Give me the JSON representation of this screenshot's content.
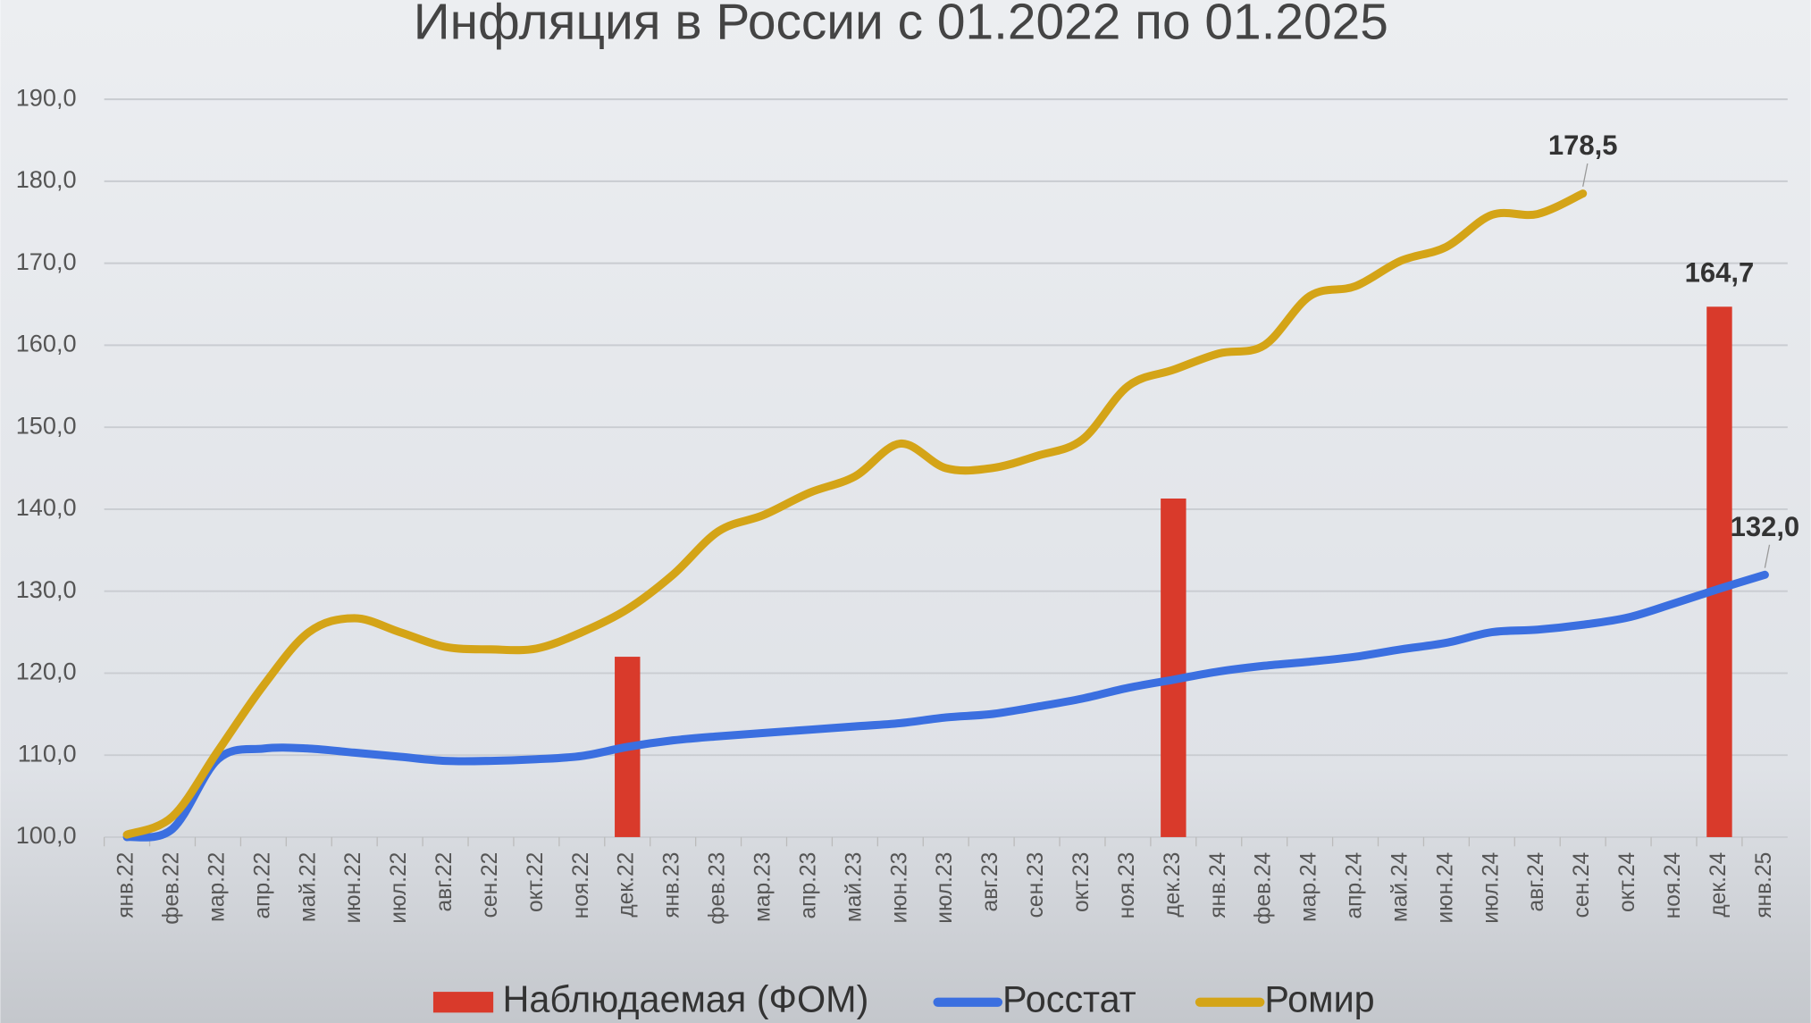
{
  "chart_data": {
    "type": "line",
    "title": "Инфляция в России с 01.2022 по 01.2025",
    "categories": [
      "янв.22",
      "фев.22",
      "мар.22",
      "апр.22",
      "май.22",
      "июн.22",
      "июл.22",
      "авг.22",
      "сен.22",
      "окт.22",
      "ноя.22",
      "дек.22",
      "янв.23",
      "фев.23",
      "мар.23",
      "апр.23",
      "май.23",
      "июн.23",
      "июл.23",
      "авг.23",
      "сен.23",
      "окт.23",
      "ноя.23",
      "дек.23",
      "янв.24",
      "фев.24",
      "мар.24",
      "апр.24",
      "май.24",
      "июн.24",
      "июл.24",
      "авг.24",
      "сен.24",
      "окт.24",
      "ноя.24",
      "дек.24",
      "янв.25"
    ],
    "series": [
      {
        "name": "Наблюдаемая (ФОМ)",
        "type": "bar",
        "color": "#d93a2b",
        "values": [
          null,
          null,
          null,
          null,
          null,
          null,
          null,
          null,
          null,
          null,
          null,
          122.0,
          null,
          null,
          null,
          null,
          null,
          null,
          null,
          null,
          null,
          null,
          null,
          141.3,
          null,
          null,
          null,
          null,
          null,
          null,
          null,
          null,
          null,
          null,
          null,
          164.7,
          null
        ],
        "value_labels": [
          null,
          null,
          null,
          null,
          null,
          null,
          null,
          null,
          null,
          null,
          null,
          null,
          null,
          null,
          null,
          null,
          null,
          null,
          null,
          null,
          null,
          null,
          null,
          null,
          null,
          null,
          null,
          null,
          null,
          null,
          null,
          null,
          null,
          null,
          null,
          "164,7",
          null
        ]
      },
      {
        "name": "Росстат",
        "type": "line",
        "color": "#3b6fe0",
        "values": [
          100.0,
          101.0,
          109.5,
          110.8,
          110.8,
          110.3,
          109.8,
          109.3,
          109.3,
          109.5,
          109.9,
          111.0,
          111.8,
          112.3,
          112.7,
          113.1,
          113.5,
          113.9,
          114.6,
          115.0,
          115.9,
          116.9,
          118.2,
          119.2,
          120.2,
          120.9,
          121.4,
          122.0,
          122.9,
          123.7,
          125.0,
          125.3,
          125.9,
          126.8,
          128.5,
          130.3,
          132.0
        ],
        "value_labels": [
          null,
          null,
          null,
          null,
          null,
          null,
          null,
          null,
          null,
          null,
          null,
          null,
          null,
          null,
          null,
          null,
          null,
          null,
          null,
          null,
          null,
          null,
          null,
          null,
          null,
          null,
          null,
          null,
          null,
          null,
          null,
          null,
          null,
          null,
          null,
          null,
          "132,0"
        ]
      },
      {
        "name": "Ромир",
        "type": "line",
        "color": "#d4a417",
        "values": [
          100.3,
          102.5,
          110.5,
          118.5,
          125.0,
          126.7,
          125.0,
          123.2,
          122.9,
          123.0,
          125.0,
          127.8,
          132.0,
          137.3,
          139.3,
          142.0,
          144.0,
          148.0,
          145.0,
          145.0,
          146.5,
          148.5,
          155.0,
          157.0,
          159.0,
          160.0,
          166.0,
          167.2,
          170.3,
          172.0,
          175.9,
          176.0,
          178.5,
          null,
          null,
          null,
          null
        ],
        "value_labels": [
          null,
          null,
          null,
          null,
          null,
          null,
          null,
          null,
          null,
          null,
          null,
          null,
          null,
          null,
          null,
          null,
          null,
          null,
          null,
          null,
          null,
          null,
          null,
          null,
          null,
          null,
          null,
          null,
          null,
          null,
          null,
          null,
          "178,5",
          null,
          null,
          null,
          null
        ]
      }
    ],
    "ylim": [
      100,
      190
    ],
    "yticks": [
      {
        "value": 100,
        "label": "100,0"
      },
      {
        "value": 110,
        "label": "110,0"
      },
      {
        "value": 120,
        "label": "120,0"
      },
      {
        "value": 130,
        "label": "130,0"
      },
      {
        "value": 140,
        "label": "140,0"
      },
      {
        "value": 150,
        "label": "150,0"
      },
      {
        "value": 160,
        "label": "160,0"
      },
      {
        "value": 170,
        "label": "170,0"
      },
      {
        "value": 180,
        "label": "180,0"
      },
      {
        "value": 190,
        "label": "190,0"
      }
    ],
    "grid": true
  }
}
